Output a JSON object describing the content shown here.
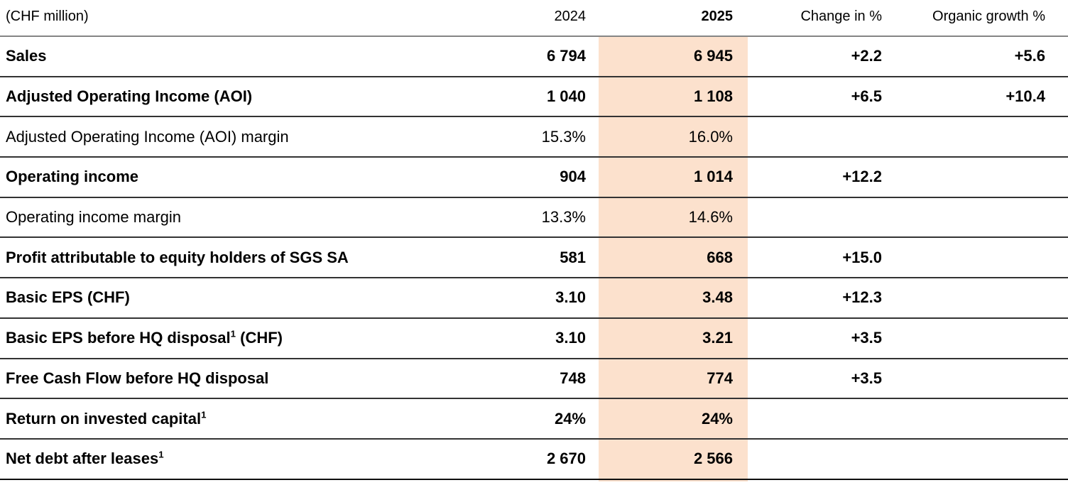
{
  "table": {
    "unit_label": "(CHF million)",
    "highlight_color": "#fce1cd",
    "columns": {
      "c2024": "2024",
      "c2025": "2025",
      "change": "Change in %",
      "organic": "Organic growth %"
    },
    "rows": [
      {
        "label": "Sales",
        "v2024": "6 794",
        "v2025": "6 945",
        "change": "+2.2",
        "organic": "+5.6"
      },
      {
        "label": "Adjusted Operating Income (AOI)",
        "v2024": "1 040",
        "v2025": "1 108",
        "change": "+6.5",
        "organic": "+10.4"
      },
      {
        "label": "Adjusted Operating Income (AOI) margin",
        "v2024": "15.3%",
        "v2025": "16.0%",
        "change": "",
        "organic": ""
      },
      {
        "label": "Operating income",
        "v2024": "904",
        "v2025": "1 014",
        "change": "+12.2",
        "organic": ""
      },
      {
        "label": "Operating income margin",
        "v2024": "13.3%",
        "v2025": "14.6%",
        "change": "",
        "organic": ""
      },
      {
        "label": "Profit attributable to equity holders of SGS SA",
        "v2024": "581",
        "v2025": "668",
        "change": "+15.0",
        "organic": ""
      },
      {
        "label": "Basic EPS (CHF)",
        "v2024": "3.10",
        "v2025": "3.48",
        "change": "+12.3",
        "organic": ""
      },
      {
        "label": "Basic EPS before HQ disposal",
        "sup": "1",
        "label_after": " (CHF)",
        "v2024": "3.10",
        "v2025": "3.21",
        "change": "+3.5",
        "organic": ""
      },
      {
        "label": "Free Cash Flow before HQ disposal",
        "v2024": "748",
        "v2025": "774",
        "change": "+3.5",
        "organic": ""
      },
      {
        "label": "Return on invested capital",
        "sup": "1",
        "v2024": "24%",
        "v2025": "24%",
        "change": "",
        "organic": ""
      },
      {
        "label": "Net debt after leases",
        "sup": "1",
        "v2024": "2 670",
        "v2025": "2 566",
        "change": "",
        "organic": ""
      }
    ]
  }
}
